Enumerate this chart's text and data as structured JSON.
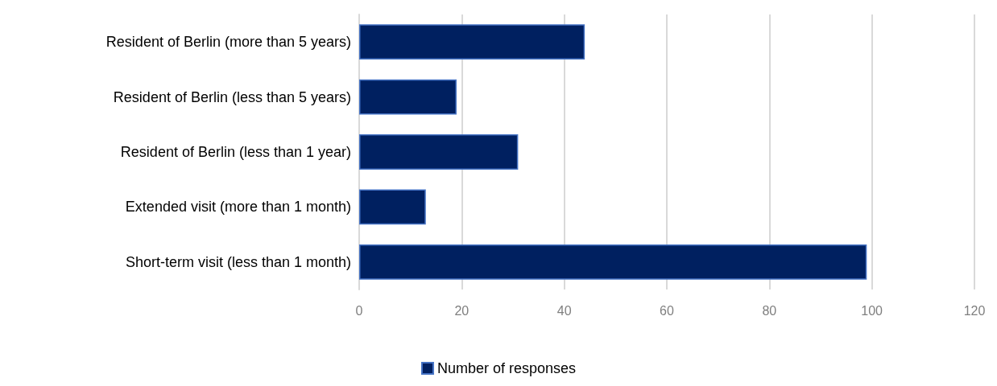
{
  "chart_data": {
    "type": "bar",
    "orientation": "horizontal",
    "categories": [
      "Resident of Berlin (more than 5 years)",
      "Resident of Berlin (less than 5 years)",
      "Resident of Berlin (less than 1 year)",
      "Extended visit (more than 1 month)",
      "Short-term visit (less than 1 month)"
    ],
    "series": [
      {
        "name": "Number of responses",
        "color": "#002060",
        "values": [
          44,
          19,
          31,
          13,
          99
        ]
      }
    ],
    "xlim": [
      0,
      120
    ],
    "xticks": [
      0,
      20,
      40,
      60,
      80,
      100,
      120
    ],
    "grid": "x",
    "legend": "bottom"
  }
}
